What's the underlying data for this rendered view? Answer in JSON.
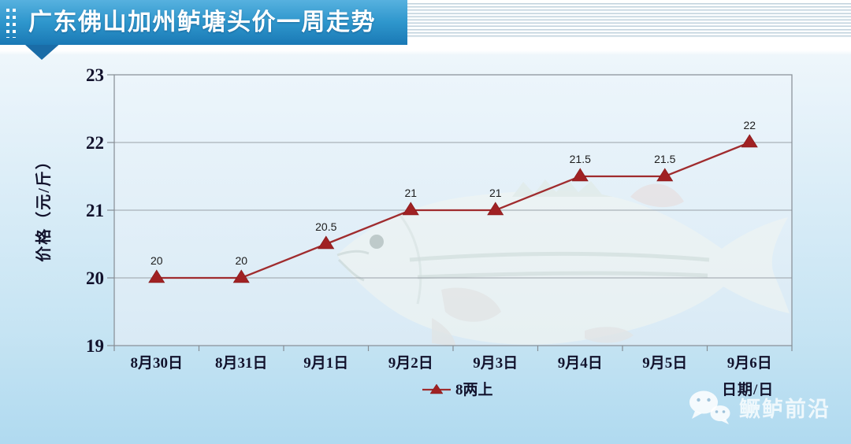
{
  "header": {
    "title": "广东佛山加州鲈塘头价一周走势"
  },
  "watermark": {
    "label": "鳜鲈前沿",
    "icon": "wechat-icon"
  },
  "chart_data": {
    "type": "line",
    "title": "广东佛山加州鲈塘头价一周走势",
    "categories": [
      "8月30日",
      "8月31日",
      "9月1日",
      "9月2日",
      "9月3日",
      "9月4日",
      "9月5日",
      "9月6日"
    ],
    "series": [
      {
        "name": "8两上",
        "values": [
          20,
          20,
          20.5,
          21,
          21,
          21.5,
          21.5,
          22
        ],
        "data_labels": [
          "20",
          "20",
          "20.5",
          "21",
          "21",
          "21.5",
          "21.5",
          "22"
        ],
        "marker": "triangle",
        "line_color": "#a02c2e",
        "marker_color": "#a02123"
      }
    ],
    "ylabel": "价格（元/斤）",
    "xlabel": "日期/日",
    "ylim": [
      19,
      23
    ],
    "yticks": [
      "23",
      "22",
      "21",
      "20",
      "19"
    ],
    "grid": true,
    "legend_position": "bottom",
    "background_image": "faded-bass-fish"
  },
  "colors": {
    "banner_top": "#57b1df",
    "banner_bottom": "#1a79b5",
    "grid": "#9aa1a8",
    "frame": "#868d94",
    "axis_text": "#12122c",
    "page_bottom": "#b0daf0"
  }
}
